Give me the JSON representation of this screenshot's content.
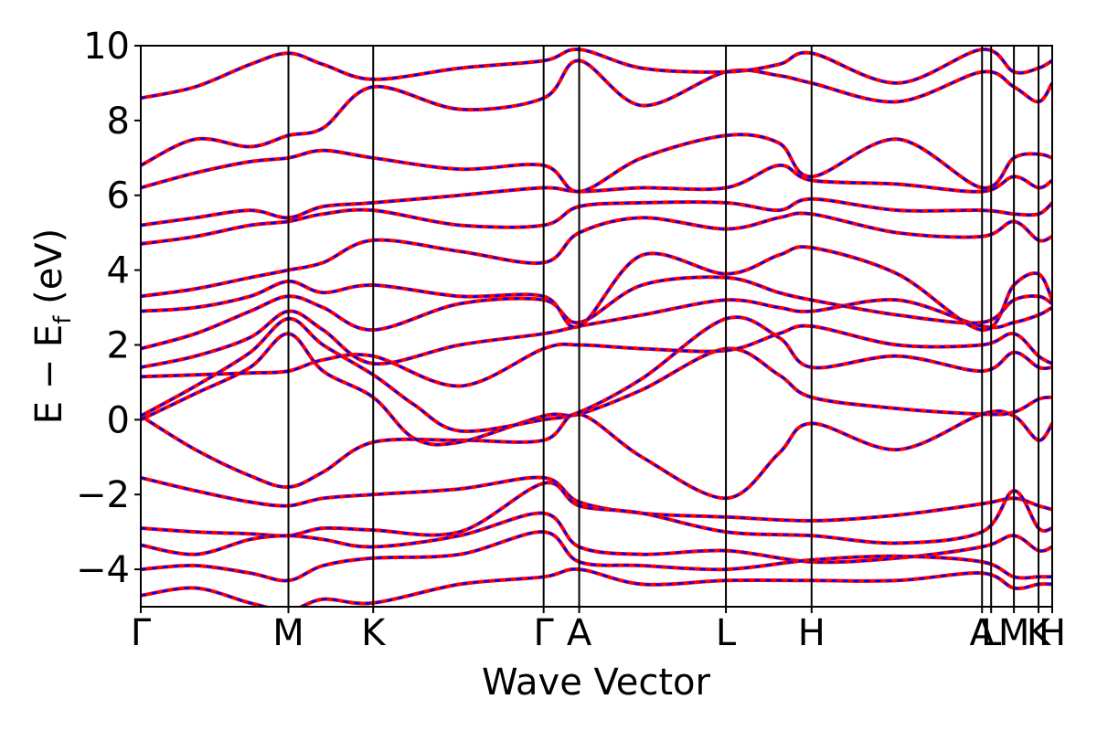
{
  "chart_data": {
    "type": "line",
    "title": "",
    "xlabel": "Wave Vector",
    "ylabel": {
      "main": "E − E",
      "sub": "f",
      "unit": " (eV)"
    },
    "ylim": [
      -5,
      10
    ],
    "y_ticks": [
      {
        "value": -4,
        "label": "−4"
      },
      {
        "value": -2,
        "label": "−2"
      },
      {
        "value": 0,
        "label": "0"
      },
      {
        "value": 2,
        "label": "2"
      },
      {
        "value": 4,
        "label": "4"
      },
      {
        "value": 6,
        "label": "6"
      },
      {
        "value": 8,
        "label": "8"
      },
      {
        "value": 10,
        "label": "10"
      }
    ],
    "x_range": [
      0,
      1
    ],
    "k_path": [
      {
        "label": "Γ",
        "x": 0.0
      },
      {
        "label": "M",
        "x": 0.162
      },
      {
        "label": "K",
        "x": 0.255
      },
      {
        "label": "Γ",
        "x": 0.442
      },
      {
        "label": "A",
        "x": 0.481
      },
      {
        "label": "L",
        "x": 0.642
      },
      {
        "label": "H",
        "x": 0.736
      },
      {
        "label": "A",
        "x": 0.923
      },
      {
        "label": "L",
        "x": 0.933
      },
      {
        "label": "M",
        "x": 0.958
      },
      {
        "label": "K",
        "x": 0.985
      },
      {
        "label": "H",
        "x": 1.0
      }
    ],
    "line_styles": {
      "solid_color": "#ff0000",
      "dashed_color": "#0000ff"
    },
    "grid": false,
    "legend": "none",
    "bands": [
      [
        [
          0.0,
          -1.55
        ],
        [
          0.06,
          -1.9
        ],
        [
          0.12,
          -2.2
        ],
        [
          0.162,
          -2.3
        ],
        [
          0.2,
          -2.1
        ],
        [
          0.255,
          -2.0
        ],
        [
          0.35,
          -1.85
        ],
        [
          0.442,
          -1.55
        ],
        [
          0.481,
          -2.2
        ],
        [
          0.55,
          -2.5
        ],
        [
          0.642,
          -2.6
        ],
        [
          0.736,
          -2.7
        ],
        [
          0.83,
          -2.55
        ],
        [
          0.923,
          -2.25
        ],
        [
          0.958,
          -2.1
        ],
        [
          0.985,
          -2.3
        ],
        [
          1.0,
          -2.4
        ]
      ],
      [
        [
          0.0,
          0.1
        ],
        [
          0.06,
          -0.8
        ],
        [
          0.12,
          -1.5
        ],
        [
          0.162,
          -1.8
        ],
        [
          0.2,
          -1.4
        ],
        [
          0.255,
          -0.6
        ],
        [
          0.35,
          -0.55
        ],
        [
          0.442,
          -0.55
        ],
        [
          0.481,
          0.15
        ],
        [
          0.55,
          -1.0
        ],
        [
          0.642,
          -2.1
        ],
        [
          0.7,
          -0.9
        ],
        [
          0.736,
          -0.1
        ],
        [
          0.83,
          -0.8
        ],
        [
          0.923,
          0.15
        ],
        [
          0.958,
          0.1
        ],
        [
          0.985,
          -0.55
        ],
        [
          1.0,
          -0.1
        ]
      ],
      [
        [
          0.0,
          0.0
        ],
        [
          0.06,
          0.7
        ],
        [
          0.12,
          1.4
        ],
        [
          0.162,
          2.3
        ],
        [
          0.2,
          1.3
        ],
        [
          0.255,
          0.6
        ],
        [
          0.3,
          -0.5
        ],
        [
          0.35,
          -0.6
        ],
        [
          0.442,
          0.1
        ],
        [
          0.481,
          0.15
        ],
        [
          0.55,
          0.8
        ],
        [
          0.642,
          1.9
        ],
        [
          0.7,
          1.2
        ],
        [
          0.736,
          0.6
        ],
        [
          0.83,
          0.3
        ],
        [
          0.923,
          0.15
        ],
        [
          0.958,
          0.2
        ],
        [
          0.985,
          0.55
        ],
        [
          1.0,
          0.6
        ]
      ],
      [
        [
          0.0,
          0.1
        ],
        [
          0.06,
          0.9
        ],
        [
          0.12,
          1.8
        ],
        [
          0.162,
          2.7
        ],
        [
          0.2,
          2.0
        ],
        [
          0.255,
          1.2
        ],
        [
          0.3,
          0.4
        ],
        [
          0.35,
          -0.3
        ],
        [
          0.442,
          0.0
        ],
        [
          0.481,
          0.2
        ],
        [
          0.55,
          1.1
        ],
        [
          0.642,
          2.7
        ],
        [
          0.7,
          2.2
        ],
        [
          0.736,
          1.4
        ],
        [
          0.83,
          1.7
        ],
        [
          0.923,
          1.3
        ],
        [
          0.958,
          1.8
        ],
        [
          0.985,
          1.4
        ],
        [
          1.0,
          1.4
        ]
      ],
      [
        [
          0.0,
          1.15
        ],
        [
          0.06,
          1.2
        ],
        [
          0.12,
          1.25
        ],
        [
          0.162,
          1.3
        ],
        [
          0.2,
          1.6
        ],
        [
          0.255,
          1.7
        ],
        [
          0.35,
          0.9
        ],
        [
          0.442,
          1.9
        ],
        [
          0.481,
          2.0
        ],
        [
          0.55,
          1.9
        ],
        [
          0.642,
          1.85
        ],
        [
          0.7,
          2.3
        ],
        [
          0.736,
          2.5
        ],
        [
          0.83,
          2.0
        ],
        [
          0.923,
          2.0
        ],
        [
          0.958,
          2.3
        ],
        [
          0.985,
          1.7
        ],
        [
          1.0,
          1.5
        ]
      ],
      [
        [
          0.0,
          1.4
        ],
        [
          0.06,
          1.7
        ],
        [
          0.12,
          2.2
        ],
        [
          0.162,
          2.9
        ],
        [
          0.2,
          2.4
        ],
        [
          0.255,
          1.5
        ],
        [
          0.35,
          2.0
        ],
        [
          0.442,
          2.3
        ],
        [
          0.481,
          2.5
        ],
        [
          0.55,
          2.8
        ],
        [
          0.642,
          3.2
        ],
        [
          0.7,
          3.0
        ],
        [
          0.736,
          2.9
        ],
        [
          0.83,
          3.2
        ],
        [
          0.923,
          2.5
        ],
        [
          0.958,
          2.6
        ],
        [
          0.985,
          2.8
        ],
        [
          1.0,
          3.0
        ]
      ],
      [
        [
          0.0,
          1.9
        ],
        [
          0.06,
          2.3
        ],
        [
          0.12,
          2.9
        ],
        [
          0.162,
          3.3
        ],
        [
          0.2,
          3.0
        ],
        [
          0.255,
          2.4
        ],
        [
          0.35,
          3.1
        ],
        [
          0.442,
          3.2
        ],
        [
          0.481,
          2.6
        ],
        [
          0.55,
          3.6
        ],
        [
          0.642,
          3.8
        ],
        [
          0.7,
          3.4
        ],
        [
          0.736,
          3.2
        ],
        [
          0.83,
          2.8
        ],
        [
          0.923,
          2.6
        ],
        [
          0.958,
          3.2
        ],
        [
          0.985,
          3.3
        ],
        [
          1.0,
          3.1
        ]
      ],
      [
        [
          0.0,
          2.9
        ],
        [
          0.06,
          3.0
        ],
        [
          0.12,
          3.3
        ],
        [
          0.162,
          3.7
        ],
        [
          0.2,
          3.4
        ],
        [
          0.255,
          3.6
        ],
        [
          0.35,
          3.3
        ],
        [
          0.442,
          3.3
        ],
        [
          0.481,
          2.5
        ],
        [
          0.55,
          4.4
        ],
        [
          0.642,
          3.9
        ],
        [
          0.7,
          4.4
        ],
        [
          0.736,
          4.6
        ],
        [
          0.83,
          3.9
        ],
        [
          0.923,
          2.4
        ],
        [
          0.958,
          3.6
        ],
        [
          0.985,
          3.9
        ],
        [
          1.0,
          3.2
        ]
      ],
      [
        [
          0.0,
          3.3
        ],
        [
          0.06,
          3.5
        ],
        [
          0.12,
          3.8
        ],
        [
          0.162,
          4.0
        ],
        [
          0.2,
          4.2
        ],
        [
          0.255,
          4.8
        ],
        [
          0.35,
          4.5
        ],
        [
          0.442,
          4.2
        ],
        [
          0.481,
          5.0
        ],
        [
          0.55,
          5.4
        ],
        [
          0.642,
          5.1
        ],
        [
          0.7,
          5.4
        ],
        [
          0.736,
          5.5
        ],
        [
          0.83,
          5.0
        ],
        [
          0.923,
          4.9
        ],
        [
          0.958,
          5.3
        ],
        [
          0.985,
          4.8
        ],
        [
          1.0,
          4.9
        ]
      ],
      [
        [
          0.0,
          4.7
        ],
        [
          0.06,
          4.9
        ],
        [
          0.12,
          5.2
        ],
        [
          0.162,
          5.3
        ],
        [
          0.2,
          5.5
        ],
        [
          0.255,
          5.6
        ],
        [
          0.35,
          5.2
        ],
        [
          0.442,
          5.2
        ],
        [
          0.481,
          5.7
        ],
        [
          0.55,
          5.8
        ],
        [
          0.642,
          5.8
        ],
        [
          0.7,
          5.6
        ],
        [
          0.736,
          5.9
        ],
        [
          0.83,
          5.6
        ],
        [
          0.923,
          5.6
        ],
        [
          0.958,
          5.5
        ],
        [
          0.985,
          5.5
        ],
        [
          1.0,
          5.8
        ]
      ],
      [
        [
          0.0,
          5.2
        ],
        [
          0.06,
          5.4
        ],
        [
          0.12,
          5.6
        ],
        [
          0.162,
          5.4
        ],
        [
          0.2,
          5.7
        ],
        [
          0.255,
          5.8
        ],
        [
          0.35,
          6.0
        ],
        [
          0.442,
          6.2
        ],
        [
          0.481,
          6.1
        ],
        [
          0.55,
          6.2
        ],
        [
          0.642,
          6.2
        ],
        [
          0.7,
          6.8
        ],
        [
          0.736,
          6.4
        ],
        [
          0.83,
          6.3
        ],
        [
          0.923,
          6.1
        ],
        [
          0.958,
          6.5
        ],
        [
          0.985,
          6.2
        ],
        [
          1.0,
          6.4
        ]
      ],
      [
        [
          0.0,
          6.2
        ],
        [
          0.06,
          6.6
        ],
        [
          0.12,
          6.9
        ],
        [
          0.162,
          7.0
        ],
        [
          0.2,
          7.2
        ],
        [
          0.255,
          7.0
        ],
        [
          0.35,
          6.7
        ],
        [
          0.442,
          6.8
        ],
        [
          0.481,
          6.1
        ],
        [
          0.55,
          7.0
        ],
        [
          0.642,
          7.6
        ],
        [
          0.7,
          7.4
        ],
        [
          0.736,
          6.5
        ],
        [
          0.83,
          7.5
        ],
        [
          0.923,
          6.2
        ],
        [
          0.958,
          7.0
        ],
        [
          0.985,
          7.1
        ],
        [
          1.0,
          7.0
        ]
      ],
      [
        [
          0.0,
          6.8
        ],
        [
          0.06,
          7.5
        ],
        [
          0.12,
          7.3
        ],
        [
          0.162,
          7.6
        ],
        [
          0.2,
          7.8
        ],
        [
          0.255,
          8.9
        ],
        [
          0.35,
          8.3
        ],
        [
          0.442,
          8.6
        ],
        [
          0.481,
          9.6
        ],
        [
          0.55,
          8.4
        ],
        [
          0.642,
          9.3
        ],
        [
          0.7,
          9.2
        ],
        [
          0.736,
          9.0
        ],
        [
          0.83,
          8.5
        ],
        [
          0.923,
          9.3
        ],
        [
          0.958,
          8.9
        ],
        [
          0.985,
          8.5
        ],
        [
          1.0,
          9.0
        ]
      ],
      [
        [
          0.0,
          8.6
        ],
        [
          0.06,
          8.9
        ],
        [
          0.12,
          9.5
        ],
        [
          0.162,
          9.8
        ],
        [
          0.2,
          9.5
        ],
        [
          0.255,
          9.1
        ],
        [
          0.35,
          9.4
        ],
        [
          0.442,
          9.6
        ],
        [
          0.481,
          9.9
        ],
        [
          0.55,
          9.4
        ],
        [
          0.642,
          9.3
        ],
        [
          0.7,
          9.5
        ],
        [
          0.736,
          9.8
        ],
        [
          0.83,
          9.0
        ],
        [
          0.923,
          9.9
        ],
        [
          0.958,
          9.3
        ],
        [
          0.985,
          9.4
        ],
        [
          1.0,
          9.6
        ]
      ],
      [
        [
          0.0,
          -2.9
        ],
        [
          0.06,
          -3.0
        ],
        [
          0.12,
          -3.05
        ],
        [
          0.162,
          -3.1
        ],
        [
          0.2,
          -2.9
        ],
        [
          0.255,
          -2.95
        ],
        [
          0.35,
          -3.0
        ],
        [
          0.442,
          -1.7
        ],
        [
          0.481,
          -2.3
        ],
        [
          0.55,
          -2.5
        ],
        [
          0.642,
          -3.0
        ],
        [
          0.736,
          -3.1
        ],
        [
          0.83,
          -3.3
        ],
        [
          0.923,
          -3.0
        ],
        [
          0.958,
          -1.9
        ],
        [
          0.985,
          -2.9
        ],
        [
          1.0,
          -2.9
        ]
      ],
      [
        [
          0.0,
          -3.35
        ],
        [
          0.06,
          -3.6
        ],
        [
          0.12,
          -3.2
        ],
        [
          0.162,
          -3.1
        ],
        [
          0.2,
          -3.2
        ],
        [
          0.255,
          -3.4
        ],
        [
          0.35,
          -3.1
        ],
        [
          0.442,
          -2.5
        ],
        [
          0.481,
          -3.4
        ],
        [
          0.55,
          -3.6
        ],
        [
          0.642,
          -3.5
        ],
        [
          0.736,
          -3.8
        ],
        [
          0.83,
          -3.7
        ],
        [
          0.923,
          -3.4
        ],
        [
          0.958,
          -3.1
        ],
        [
          0.985,
          -3.5
        ],
        [
          1.0,
          -3.4
        ]
      ],
      [
        [
          0.0,
          -4.0
        ],
        [
          0.06,
          -3.9
        ],
        [
          0.12,
          -4.1
        ],
        [
          0.162,
          -4.3
        ],
        [
          0.2,
          -3.9
        ],
        [
          0.255,
          -3.7
        ],
        [
          0.35,
          -3.6
        ],
        [
          0.442,
          -3.0
        ],
        [
          0.481,
          -3.8
        ],
        [
          0.55,
          -3.9
        ],
        [
          0.642,
          -4.0
        ],
        [
          0.736,
          -3.75
        ],
        [
          0.83,
          -3.65
        ],
        [
          0.923,
          -3.8
        ],
        [
          0.958,
          -4.2
        ],
        [
          0.985,
          -4.2
        ],
        [
          1.0,
          -4.2
        ]
      ],
      [
        [
          0.0,
          -4.7
        ],
        [
          0.06,
          -4.5
        ],
        [
          0.12,
          -4.9
        ],
        [
          0.162,
          -5.1
        ],
        [
          0.2,
          -4.8
        ],
        [
          0.255,
          -4.9
        ],
        [
          0.35,
          -4.4
        ],
        [
          0.442,
          -4.2
        ],
        [
          0.481,
          -4.0
        ],
        [
          0.55,
          -4.4
        ],
        [
          0.642,
          -4.3
        ],
        [
          0.736,
          -4.3
        ],
        [
          0.83,
          -4.3
        ],
        [
          0.923,
          -4.1
        ],
        [
          0.958,
          -4.5
        ],
        [
          0.985,
          -4.4
        ],
        [
          1.0,
          -4.4
        ]
      ]
    ]
  }
}
